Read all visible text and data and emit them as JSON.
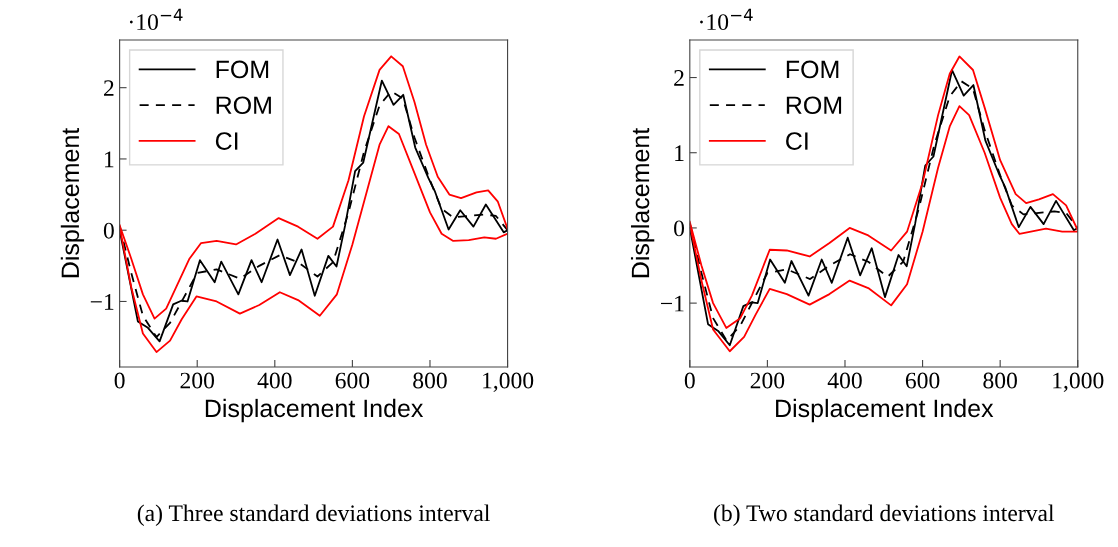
{
  "chart_data": [
    {
      "type": "line",
      "xlabel": "Displacement Index",
      "ylabel": "Displacement",
      "legend": "top left",
      "grid": false,
      "xlim": [
        0,
        1000
      ],
      "ylim": [
        -1.92,
        2.67
      ],
      "xticks": [
        0,
        200,
        400,
        600,
        800,
        {
          "value": 1000,
          "label": "1,000"
        }
      ],
      "yticks": [
        {
          "value": -1,
          "label": "−1"
        },
        0,
        1,
        2
      ],
      "annotations": [
        "·10$^{−4}$",
        "(a) Three standard deviations interval"
      ],
      "series": [
        {
          "name": "FOM",
          "color": "#000000",
          "line_style": "solid",
          "x": [
            0,
            47,
            73,
            103,
            138,
            159,
            175,
            207,
            245,
            262,
            306,
            340,
            366,
            407,
            439,
            469,
            503,
            538,
            559,
            581,
            607,
            628,
            676,
            706,
            731,
            762,
            796,
            813,
            848,
            878,
            912,
            944,
            990,
            1000
          ],
          "values": [
            0.0,
            -1.28,
            -1.37,
            -1.56,
            -1.04,
            -0.99,
            -1.0,
            -0.42,
            -0.73,
            -0.44,
            -0.9,
            -0.42,
            -0.73,
            -0.13,
            -0.63,
            -0.27,
            -0.92,
            -0.36,
            -0.51,
            0.06,
            0.83,
            0.95,
            2.1,
            1.76,
            1.9,
            1.16,
            0.73,
            0.54,
            0.01,
            0.28,
            0.05,
            0.36,
            -0.03,
            0.0
          ]
        },
        {
          "name": "ROM",
          "color": "#000000",
          "line_style": "dashed",
          "x": [
            0,
            30,
            60,
            95,
            130,
            160,
            200,
            250,
            310,
            360,
            413,
            460,
            510,
            550,
            590,
            630,
            670,
            700,
            730,
            760,
            800,
            830,
            860,
            900,
            940,
            970,
            1000
          ],
          "values": [
            0.06,
            -0.6,
            -1.2,
            -1.5,
            -1.3,
            -1.0,
            -0.6,
            -0.55,
            -0.68,
            -0.5,
            -0.35,
            -0.45,
            -0.65,
            -0.45,
            0.25,
            1.1,
            1.75,
            1.95,
            1.85,
            1.3,
            0.7,
            0.3,
            0.18,
            0.2,
            0.22,
            0.2,
            0.0
          ]
        },
        {
          "name": "CI",
          "color": "#ff0000",
          "line_style": "solid",
          "x": [
            0,
            30,
            60,
            90,
            120,
            150,
            180,
            210,
            250,
            300,
            350,
            410,
            460,
            510,
            550,
            590,
            630,
            670,
            700,
            730,
            760,
            790,
            820,
            850,
            880,
            920,
            950,
            975,
            1000
          ],
          "values": [
            0.07,
            -0.4,
            -0.9,
            -1.24,
            -1.1,
            -0.75,
            -0.4,
            -0.18,
            -0.15,
            -0.2,
            -0.05,
            0.17,
            0.05,
            -0.12,
            0.05,
            0.7,
            1.6,
            2.25,
            2.44,
            2.3,
            1.8,
            1.2,
            0.75,
            0.5,
            0.45,
            0.53,
            0.56,
            0.4,
            0.02
          ]
        },
        {
          "color": "#ff0000",
          "line_style": "solid",
          "x": [
            0,
            30,
            60,
            95,
            130,
            160,
            198,
            250,
            310,
            360,
            413,
            460,
            516,
            560,
            600,
            640,
            670,
            693,
            720,
            760,
            800,
            830,
            860,
            900,
            940,
            970,
            1000
          ],
          "values": [
            0.05,
            -0.8,
            -1.45,
            -1.71,
            -1.55,
            -1.25,
            -0.93,
            -1.0,
            -1.17,
            -1.05,
            -0.87,
            -0.98,
            -1.2,
            -0.9,
            -0.2,
            0.6,
            1.2,
            1.46,
            1.35,
            0.8,
            0.25,
            -0.05,
            -0.15,
            -0.14,
            -0.1,
            -0.12,
            -0.05
          ]
        }
      ]
    },
    {
      "type": "line",
      "xlabel": "Displacement Index",
      "ylabel": "Displacement",
      "legend": "top left",
      "grid": false,
      "xlim": [
        0,
        1000
      ],
      "ylim": [
        -1.85,
        2.5
      ],
      "xticks": [
        0,
        200,
        400,
        600,
        800,
        {
          "value": 1000,
          "label": "1,000"
        }
      ],
      "yticks": [
        {
          "value": -1,
          "label": "−1"
        },
        0,
        1,
        2
      ],
      "annotations": [
        "·10$^{−4}$",
        "(b) Two standard deviations interval"
      ],
      "series": [
        {
          "name": "FOM",
          "color": "#000000",
          "line_style": "solid",
          "x": [
            0,
            47,
            73,
            103,
            138,
            159,
            175,
            207,
            245,
            262,
            306,
            340,
            366,
            407,
            439,
            469,
            503,
            538,
            559,
            581,
            607,
            628,
            676,
            706,
            731,
            762,
            796,
            813,
            848,
            878,
            912,
            944,
            990,
            1000
          ],
          "values": [
            0.0,
            -1.28,
            -1.37,
            -1.56,
            -1.04,
            -0.99,
            -1.0,
            -0.42,
            -0.73,
            -0.44,
            -0.9,
            -0.42,
            -0.73,
            -0.13,
            -0.63,
            -0.27,
            -0.92,
            -0.36,
            -0.51,
            0.06,
            0.83,
            0.95,
            2.1,
            1.76,
            1.9,
            1.16,
            0.73,
            0.54,
            0.01,
            0.28,
            0.05,
            0.36,
            -0.03,
            0.0
          ]
        },
        {
          "name": "ROM",
          "color": "#000000",
          "line_style": "dashed",
          "x": [
            0,
            30,
            60,
            95,
            130,
            160,
            200,
            250,
            310,
            360,
            413,
            460,
            510,
            550,
            590,
            630,
            670,
            700,
            730,
            760,
            800,
            830,
            860,
            900,
            940,
            970,
            1000
          ],
          "values": [
            0.06,
            -0.6,
            -1.2,
            -1.5,
            -1.3,
            -1.0,
            -0.6,
            -0.55,
            -0.68,
            -0.5,
            -0.35,
            -0.45,
            -0.65,
            -0.45,
            0.25,
            1.1,
            1.75,
            1.95,
            1.85,
            1.3,
            0.7,
            0.3,
            0.18,
            0.2,
            0.22,
            0.2,
            0.0
          ]
        },
        {
          "name": "CI",
          "color": "#ff0000",
          "line_style": "solid",
          "x": [
            0,
            30,
            60,
            94,
            130,
            160,
            206,
            250,
            309,
            360,
            412,
            460,
            519,
            560,
            600,
            640,
            670,
            695,
            730,
            760,
            800,
            840,
            867,
            900,
            936,
            970,
            1000
          ],
          "values": [
            0.08,
            -0.5,
            -1.0,
            -1.33,
            -1.2,
            -0.9,
            -0.29,
            -0.3,
            -0.38,
            -0.2,
            0.0,
            -0.1,
            -0.3,
            -0.05,
            0.6,
            1.5,
            2.05,
            2.28,
            2.1,
            1.6,
            0.9,
            0.45,
            0.33,
            0.38,
            0.45,
            0.3,
            -0.03
          ]
        },
        {
          "color": "#ff0000",
          "line_style": "solid",
          "x": [
            0,
            30,
            60,
            103,
            140,
            170,
            206,
            250,
            309,
            360,
            412,
            460,
            519,
            560,
            600,
            640,
            670,
            695,
            720,
            760,
            800,
            830,
            850,
            918,
            960,
            1000
          ],
          "values": [
            0.05,
            -0.7,
            -1.35,
            -1.64,
            -1.45,
            -1.15,
            -0.81,
            -0.88,
            -1.02,
            -0.88,
            -0.7,
            -0.8,
            -1.03,
            -0.75,
            -0.05,
            0.8,
            1.35,
            1.62,
            1.5,
            1.0,
            0.4,
            0.05,
            -0.08,
            -0.01,
            -0.05,
            -0.05
          ]
        }
      ]
    }
  ]
}
